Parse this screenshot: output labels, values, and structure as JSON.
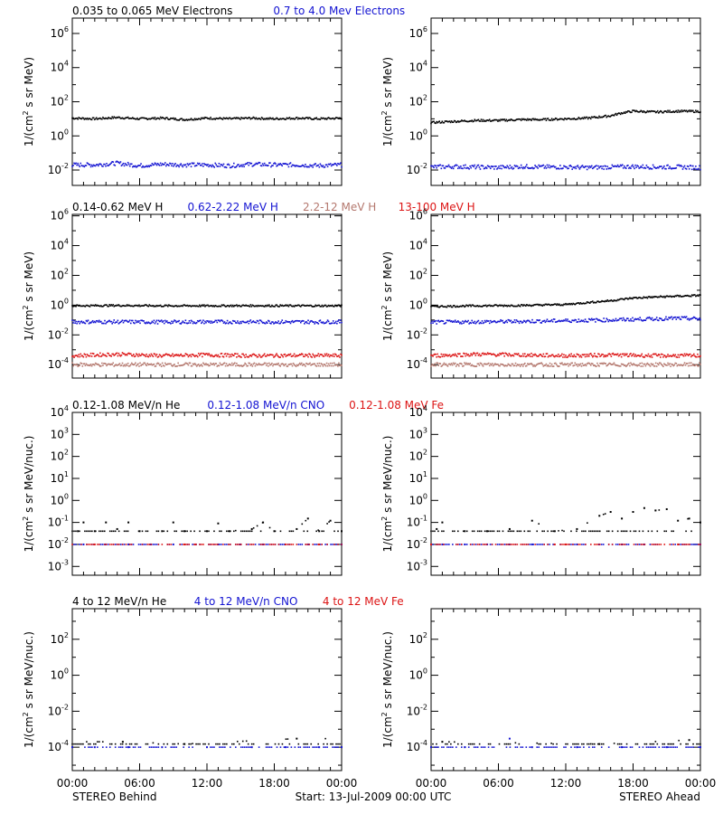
{
  "colors": {
    "black": "#000000",
    "blue": "#1414d2",
    "salmon": "#b4786e",
    "red": "#dc1414"
  },
  "time_axis": {
    "ticks": [
      "00:00",
      "06:00",
      "12:00",
      "18:00",
      "00:00"
    ],
    "range_hours": [
      0,
      24
    ]
  },
  "footer": {
    "left": "STEREO Behind",
    "center": "Start: 13-Jul-2009 00:00 UTC",
    "right": "STEREO Ahead"
  },
  "rows": [
    {
      "id": "electrons",
      "labels": [
        {
          "text": "0.035 to 0.065 MeV Electrons",
          "color": "black"
        },
        {
          "text": "0.7 to 4.0 Mev Electrons",
          "color": "blue"
        }
      ],
      "ylabel": "1/(cm² s sr MeV)",
      "ylabel_parts": {
        "pre": "1/(cm",
        "sup": "2",
        "post": " s sr MeV)"
      },
      "log_range": [
        -2.9,
        6.9
      ],
      "tick_exps": [
        -2,
        0,
        2,
        4,
        6
      ]
    },
    {
      "id": "protons",
      "labels": [
        {
          "text": "0.14-0.62 MeV H",
          "color": "black"
        },
        {
          "text": "0.62-2.22 MeV H",
          "color": "blue"
        },
        {
          "text": "2.2-12 MeV H",
          "color": "salmon"
        },
        {
          "text": "13-100 MeV H",
          "color": "red"
        }
      ],
      "ylabel": "1/(cm² s sr MeV)",
      "ylabel_parts": {
        "pre": "1/(cm",
        "sup": "2",
        "post": " s sr MeV)"
      },
      "log_range": [
        -4.9,
        6.1
      ],
      "tick_exps": [
        -4,
        -2,
        0,
        2,
        4,
        6
      ]
    },
    {
      "id": "ions-low",
      "labels": [
        {
          "text": "0.12-1.08 MeV/n He",
          "color": "black"
        },
        {
          "text": "0.12-1.08 MeV/n CNO",
          "color": "blue"
        },
        {
          "text": "0.12-1.08 MeV Fe",
          "color": "red"
        }
      ],
      "ylabel": "1/(cm² s sr MeV/nuc.)",
      "ylabel_parts": {
        "pre": "1/(cm",
        "sup": "2",
        "post": " s sr MeV/nuc.)"
      },
      "log_range": [
        -3.4,
        4.0
      ],
      "tick_exps": [
        -3,
        -2,
        -1,
        0,
        1,
        2,
        3,
        4
      ]
    },
    {
      "id": "ions-high",
      "labels": [
        {
          "text": "4 to 12 MeV/n He",
          "color": "black"
        },
        {
          "text": "4 to 12 MeV/n CNO",
          "color": "blue"
        },
        {
          "text": "4 to 12 MeV Fe",
          "color": "red"
        }
      ],
      "ylabel": "1/(cm² s sr MeV/nuc.)",
      "ylabel_parts": {
        "pre": "1/(cm",
        "sup": "2",
        "post": " s sr MeV/nuc.)"
      },
      "log_range": [
        -5.3,
        3.7
      ],
      "tick_exps": [
        -4,
        -2,
        0,
        2
      ]
    }
  ],
  "chart_data": [
    {
      "type": "scatter",
      "panel": "electrons-behind",
      "x_unit": "hours from start",
      "y_scale": "log",
      "series": [
        {
          "color": "black",
          "points": [
            [
              0,
              11
            ],
            [
              2,
              10
            ],
            [
              4,
              12
            ],
            [
              6,
              10
            ],
            [
              8,
              11
            ],
            [
              10,
              9
            ],
            [
              12,
              11
            ],
            [
              14,
              10
            ],
            [
              16,
              11
            ],
            [
              18,
              10
            ],
            [
              20,
              11
            ],
            [
              22,
              10
            ],
            [
              24,
              11
            ]
          ]
        },
        {
          "color": "blue",
          "points": [
            [
              0,
              0.02
            ],
            [
              2,
              0.02
            ],
            [
              4,
              0.025
            ],
            [
              6,
              0.018
            ],
            [
              8,
              0.022
            ],
            [
              10,
              0.02
            ],
            [
              12,
              0.02
            ],
            [
              14,
              0.018
            ],
            [
              16,
              0.022
            ],
            [
              18,
              0.02
            ],
            [
              20,
              0.02
            ],
            [
              22,
              0.018
            ],
            [
              24,
              0.02
            ]
          ]
        }
      ]
    },
    {
      "type": "scatter",
      "panel": "electrons-ahead",
      "x_unit": "hours from start",
      "y_scale": "log",
      "series": [
        {
          "color": "black",
          "points": [
            [
              0,
              6
            ],
            [
              2,
              7
            ],
            [
              4,
              8
            ],
            [
              6,
              8
            ],
            [
              8,
              9
            ],
            [
              10,
              9
            ],
            [
              12,
              10
            ],
            [
              14,
              11
            ],
            [
              16,
              15
            ],
            [
              17,
              22
            ],
            [
              18,
              28
            ],
            [
              20,
              25
            ],
            [
              22,
              28
            ],
            [
              24,
              27
            ]
          ]
        },
        {
          "color": "blue",
          "points": [
            [
              0,
              0.015
            ],
            [
              2,
              0.016
            ],
            [
              4,
              0.015
            ],
            [
              6,
              0.014
            ],
            [
              8,
              0.016
            ],
            [
              10,
              0.015
            ],
            [
              12,
              0.015
            ],
            [
              14,
              0.014
            ],
            [
              16,
              0.015
            ],
            [
              18,
              0.016
            ],
            [
              20,
              0.015
            ],
            [
              22,
              0.015
            ],
            [
              24,
              0.014
            ]
          ]
        }
      ]
    },
    {
      "type": "scatter",
      "panel": "protons-behind",
      "x_unit": "hours from start",
      "y_scale": "log",
      "series": [
        {
          "color": "black",
          "points": [
            [
              0,
              0.9
            ],
            [
              4,
              0.95
            ],
            [
              8,
              0.9
            ],
            [
              12,
              0.9
            ],
            [
              16,
              0.92
            ],
            [
              20,
              0.9
            ],
            [
              24,
              0.9
            ]
          ]
        },
        {
          "color": "blue",
          "points": [
            [
              0,
              0.075
            ],
            [
              4,
              0.075
            ],
            [
              8,
              0.073
            ],
            [
              12,
              0.075
            ],
            [
              16,
              0.075
            ],
            [
              20,
              0.074
            ],
            [
              24,
              0.075
            ]
          ]
        },
        {
          "color": "red",
          "points": [
            [
              0,
              0.0004
            ],
            [
              4,
              0.0005
            ],
            [
              8,
              0.0004
            ],
            [
              12,
              0.00045
            ],
            [
              16,
              0.0004
            ],
            [
              20,
              0.00042
            ],
            [
              24,
              0.0004
            ]
          ]
        },
        {
          "color": "salmon",
          "points": [
            [
              0,
              0.0001
            ],
            [
              4,
              0.0001
            ],
            [
              8,
              0.0001
            ],
            [
              12,
              0.0001
            ],
            [
              16,
              0.0001
            ],
            [
              20,
              0.0001
            ],
            [
              24,
              0.0001
            ]
          ]
        }
      ]
    },
    {
      "type": "scatter",
      "panel": "protons-ahead",
      "x_unit": "hours from start",
      "y_scale": "log",
      "series": [
        {
          "color": "black",
          "points": [
            [
              0,
              0.8
            ],
            [
              4,
              0.9
            ],
            [
              8,
              0.95
            ],
            [
              12,
              1.1
            ],
            [
              14,
              1.5
            ],
            [
              16,
              2
            ],
            [
              18,
              3
            ],
            [
              20,
              3.5
            ],
            [
              22,
              4
            ],
            [
              24,
              4.5
            ]
          ]
        },
        {
          "color": "blue",
          "points": [
            [
              0,
              0.07
            ],
            [
              4,
              0.075
            ],
            [
              8,
              0.08
            ],
            [
              12,
              0.09
            ],
            [
              16,
              0.1
            ],
            [
              20,
              0.12
            ],
            [
              22,
              0.13
            ],
            [
              24,
              0.12
            ]
          ]
        },
        {
          "color": "red",
          "points": [
            [
              0,
              0.0004
            ],
            [
              4,
              0.0005
            ],
            [
              8,
              0.00045
            ],
            [
              12,
              0.0004
            ],
            [
              16,
              0.00045
            ],
            [
              20,
              0.0004
            ],
            [
              24,
              0.0004
            ]
          ]
        },
        {
          "color": "salmon",
          "points": [
            [
              0,
              0.0001
            ],
            [
              4,
              0.0001
            ],
            [
              8,
              0.0001
            ],
            [
              12,
              0.0001
            ],
            [
              16,
              0.0001
            ],
            [
              20,
              0.0001
            ],
            [
              24,
              0.0001
            ]
          ]
        }
      ]
    },
    {
      "type": "scatter",
      "panel": "ions-low-behind",
      "x_unit": "hours from start",
      "y_scale": "log",
      "series": [
        {
          "color": "black",
          "points": [
            [
              0.5,
              0.04
            ],
            [
              1,
              0.1
            ],
            [
              2,
              0.04
            ],
            [
              3,
              0.1
            ],
            [
              4,
              0.05
            ],
            [
              5,
              0.1
            ],
            [
              6,
              0.04
            ],
            [
              8,
              0.04
            ],
            [
              9,
              0.1
            ],
            [
              10,
              0.04
            ],
            [
              12,
              0.04
            ],
            [
              13,
              0.09
            ],
            [
              14,
              0.04
            ],
            [
              16,
              0.05
            ],
            [
              17,
              0.1
            ],
            [
              18,
              0.04
            ],
            [
              20,
              0.05
            ],
            [
              21,
              0.15
            ],
            [
              22,
              0.04
            ],
            [
              23,
              0.12
            ],
            [
              24,
              0.04
            ]
          ]
        },
        {
          "color": "blue",
          "points": [
            [
              1,
              0.01
            ],
            [
              3,
              0.01
            ],
            [
              5,
              0.01
            ],
            [
              7,
              0.01
            ],
            [
              9,
              0.01
            ],
            [
              13,
              0.01
            ],
            [
              15,
              0.01
            ],
            [
              17,
              0.01
            ],
            [
              21,
              0.01
            ],
            [
              24,
              0.01
            ]
          ]
        },
        {
          "color": "red",
          "points": [
            [
              2,
              0.01
            ],
            [
              10,
              0.01
            ],
            [
              11,
              0.01
            ],
            [
              19,
              0.01
            ],
            [
              22,
              0.01
            ]
          ]
        }
      ]
    },
    {
      "type": "scatter",
      "panel": "ions-low-ahead",
      "x_unit": "hours from start",
      "y_scale": "log",
      "series": [
        {
          "color": "black",
          "points": [
            [
              0.5,
              0.05
            ],
            [
              1,
              0.1
            ],
            [
              3,
              0.04
            ],
            [
              5,
              0.04
            ],
            [
              7,
              0.05
            ],
            [
              9,
              0.12
            ],
            [
              11,
              0.04
            ],
            [
              13,
              0.05
            ],
            [
              15,
              0.2
            ],
            [
              16,
              0.3
            ],
            [
              17,
              0.15
            ],
            [
              18,
              0.3
            ],
            [
              19,
              0.45
            ],
            [
              20,
              0.35
            ],
            [
              21,
              0.4
            ],
            [
              22,
              0.12
            ],
            [
              23,
              0.15
            ],
            [
              24,
              0.1
            ]
          ]
        },
        {
          "color": "blue",
          "points": [
            [
              1,
              0.01
            ],
            [
              3,
              0.01
            ],
            [
              5,
              0.01
            ],
            [
              7,
              0.01
            ],
            [
              9,
              0.01
            ],
            [
              13,
              0.01
            ],
            [
              15,
              0.01
            ],
            [
              17,
              0.01
            ],
            [
              19,
              0.01
            ],
            [
              24,
              0.01
            ]
          ]
        },
        {
          "color": "red",
          "points": [
            [
              0,
              0.01
            ],
            [
              11,
              0.01
            ],
            [
              12,
              0.01
            ],
            [
              22,
              0.01
            ]
          ]
        }
      ]
    },
    {
      "type": "scatter",
      "panel": "ions-high-behind",
      "x_unit": "hours from start",
      "y_scale": "log",
      "series": [
        {
          "color": "black",
          "points": [
            [
              4.5,
              0.0002
            ],
            [
              10,
              0.00015
            ],
            [
              20,
              0.0003
            ]
          ]
        },
        {
          "color": "blue",
          "points": [
            [
              0,
              0.0001
            ],
            [
              2,
              0.0001
            ],
            [
              5,
              0.0001
            ],
            [
              8,
              0.0001
            ],
            [
              12,
              0.0001
            ],
            [
              16,
              0.0001
            ],
            [
              19,
              0.0001
            ],
            [
              22,
              0.0001
            ],
            [
              24,
              0.0001
            ]
          ]
        }
      ]
    },
    {
      "type": "scatter",
      "panel": "ions-high-ahead",
      "x_unit": "hours from start",
      "y_scale": "log",
      "series": [
        {
          "color": "black",
          "points": [
            [
              1,
              0.0002
            ],
            [
              15,
              0.00015
            ],
            [
              23,
              0.00025
            ]
          ]
        },
        {
          "color": "blue",
          "points": [
            [
              0,
              0.0001
            ],
            [
              3,
              0.0001
            ],
            [
              7,
              0.0003
            ],
            [
              9,
              0.0001
            ],
            [
              13,
              0.0001
            ],
            [
              17,
              0.0001
            ],
            [
              21,
              0.0001
            ],
            [
              24,
              0.0001
            ]
          ]
        }
      ]
    }
  ]
}
